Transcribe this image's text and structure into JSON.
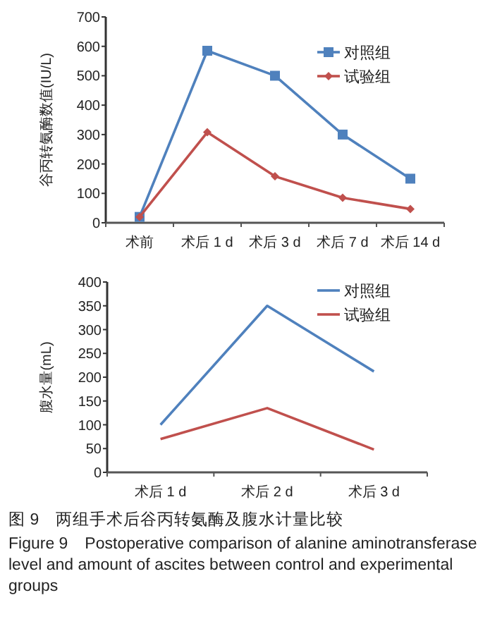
{
  "chart_data": [
    {
      "type": "line",
      "ylabel": "谷丙转氨酶数值(IU/L)",
      "categories": [
        "术前",
        "术后 1 d",
        "术后 3 d",
        "术后 7 d",
        "术后 14 d"
      ],
      "ylim": [
        0,
        700
      ],
      "yticks": [
        0,
        100,
        200,
        300,
        400,
        500,
        600,
        700
      ],
      "grid": false,
      "legend": "top right",
      "series": [
        {
          "name": "对照组",
          "color": "#4f81bd",
          "marker": "square",
          "values": [
            20,
            585,
            500,
            300,
            150
          ]
        },
        {
          "name": "试验组",
          "color": "#c0504d",
          "marker": "diamond",
          "values": [
            20,
            308,
            158,
            85,
            47
          ]
        }
      ]
    },
    {
      "type": "line",
      "ylabel": "腹水量(mL)",
      "categories": [
        "术后 1 d",
        "术后 2 d",
        "术后 3 d"
      ],
      "ylim": [
        0,
        400
      ],
      "yticks": [
        0,
        50,
        100,
        150,
        200,
        250,
        300,
        350,
        400
      ],
      "grid": false,
      "legend": "top right",
      "marker": "none",
      "series": [
        {
          "name": "对照组",
          "color": "#4f81bd",
          "values": [
            100,
            350,
            212
          ]
        },
        {
          "name": "试验组",
          "color": "#c0504d",
          "values": [
            70,
            135,
            48
          ]
        }
      ],
      "annotations": [
        "图 9　两组手术后谷丙转氨酶及腹水计量比较",
        "Figure 9　Postoperative comparison of alanine aminotransferase level and amount of ascites between control and experimental groups"
      ]
    }
  ]
}
